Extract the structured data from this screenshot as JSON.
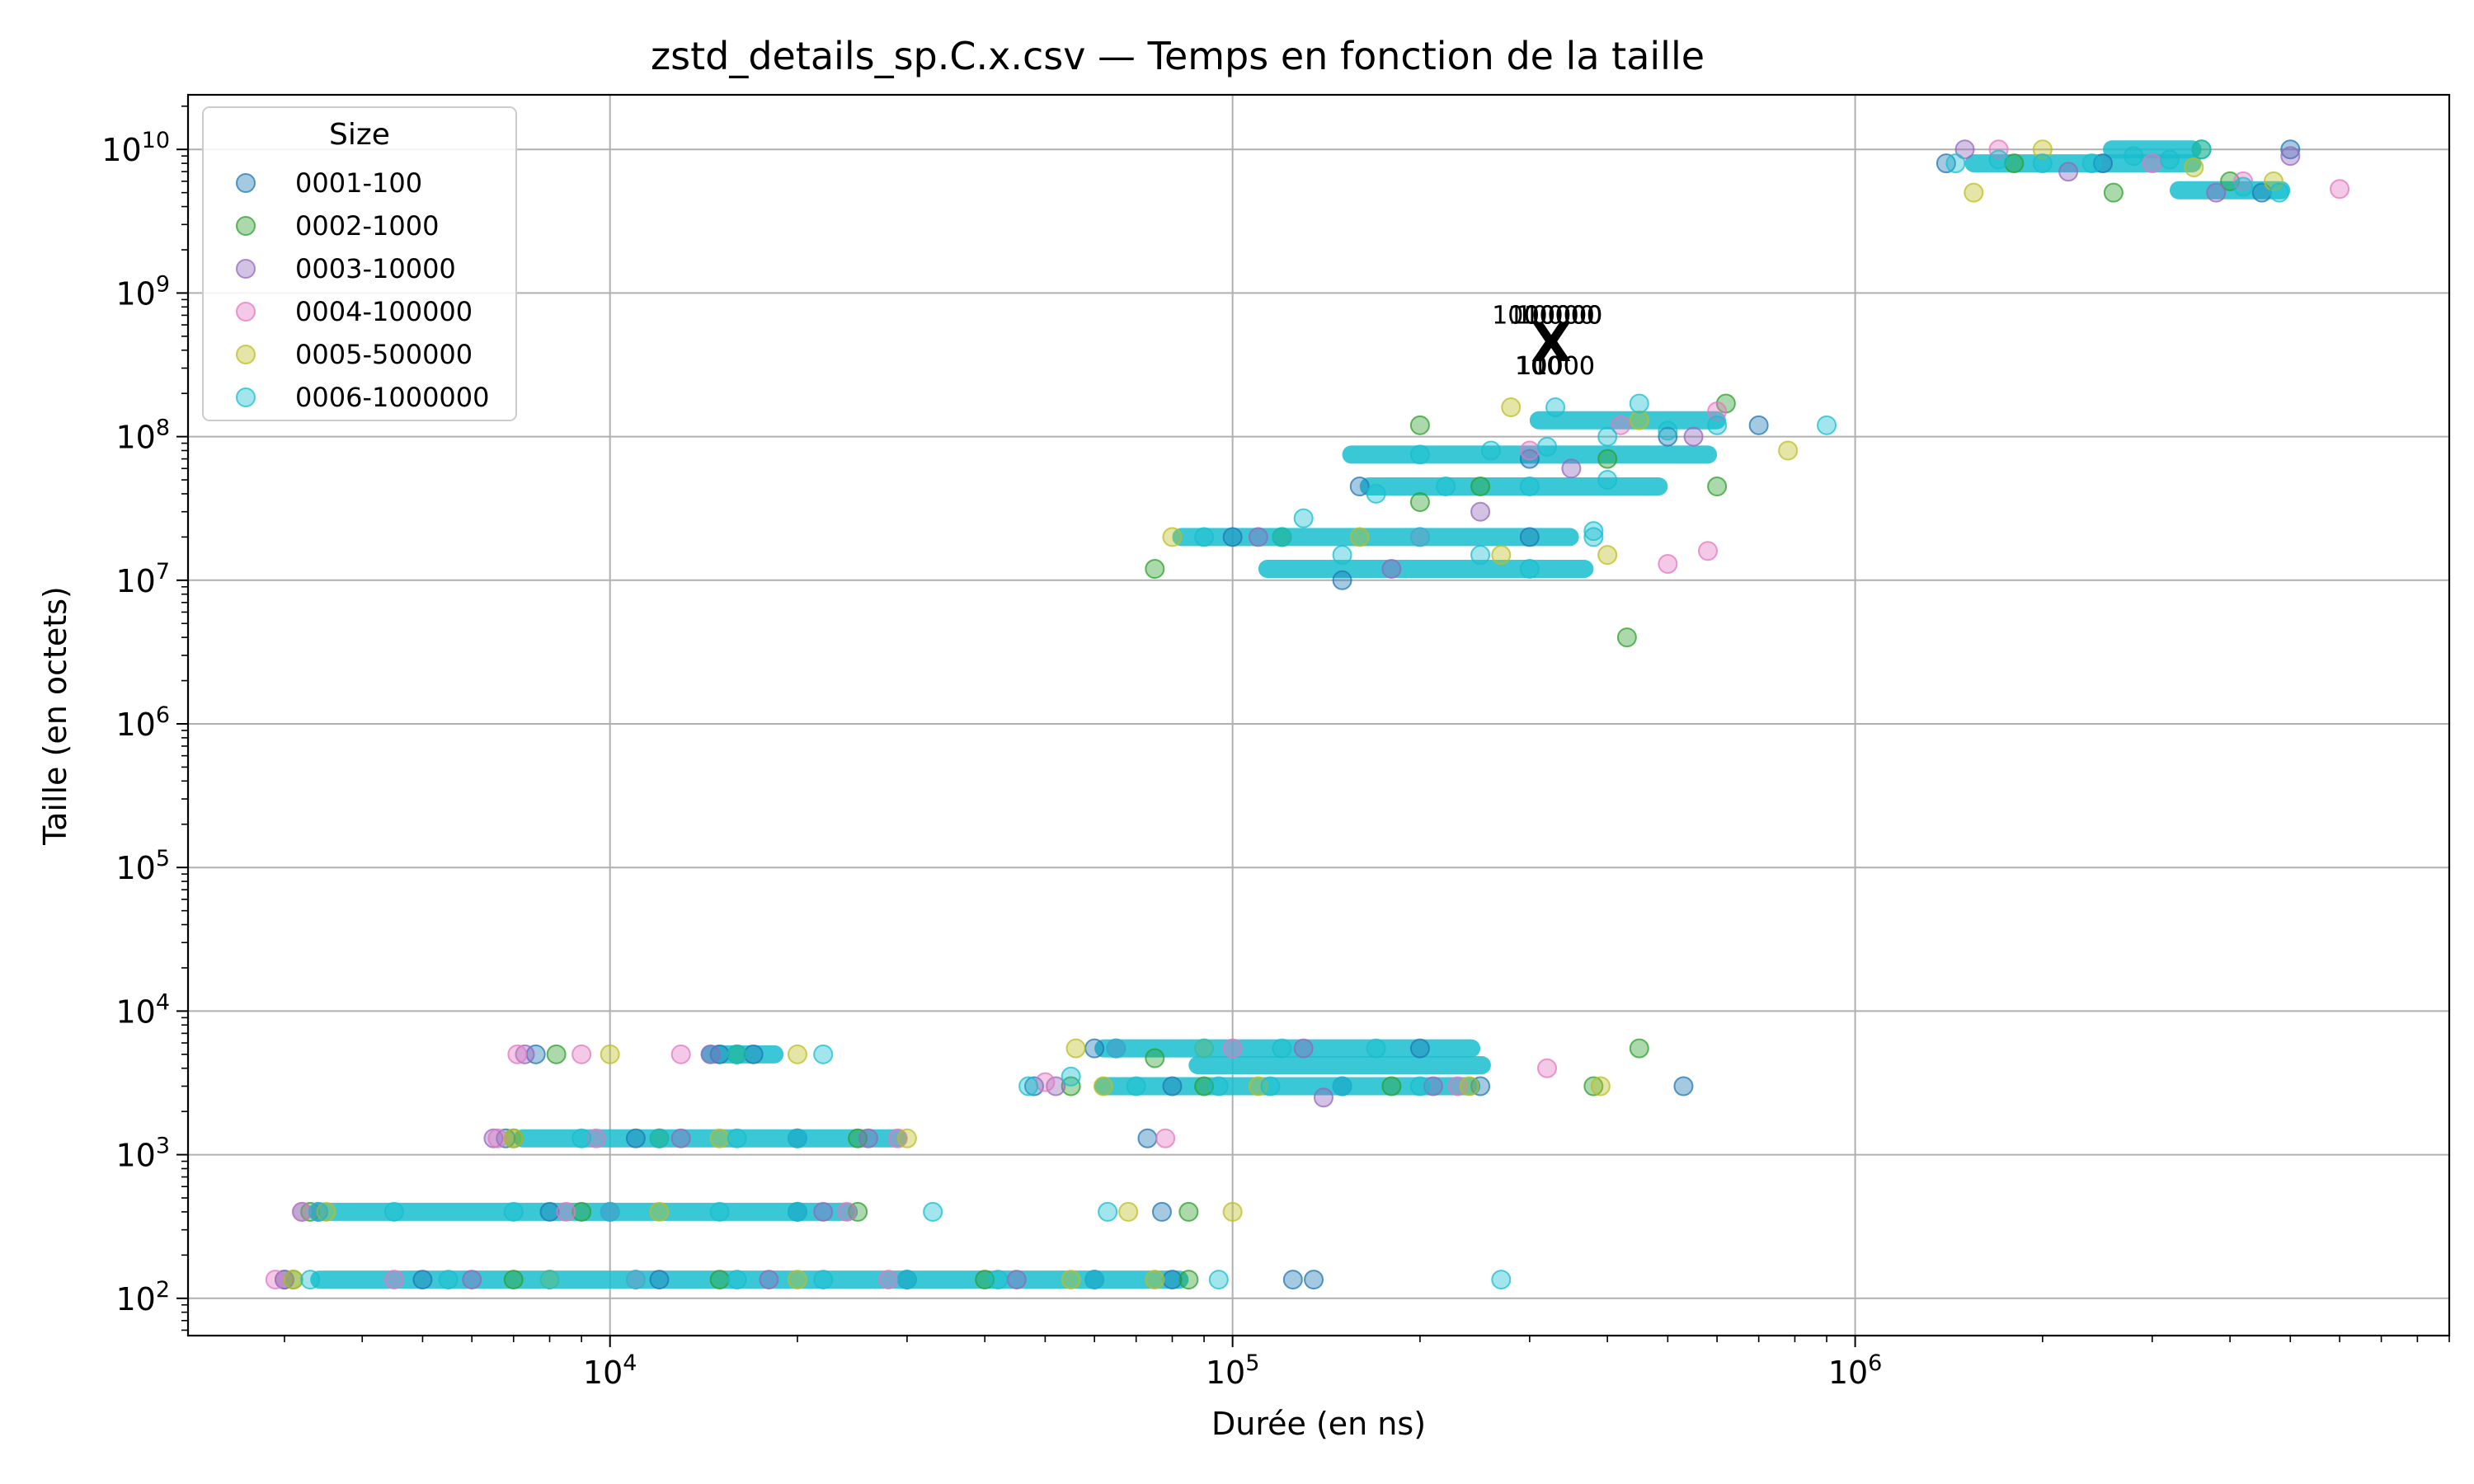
{
  "chart_data": {
    "type": "scatter",
    "title": "zstd_details_sp.C.x.csv — Temps en fonction de la taille",
    "xlabel": "Durée (en ns)",
    "ylabel": "Taille (en octets)",
    "xscale": "log",
    "yscale": "log",
    "xlim": [
      2100,
      9000000
    ],
    "ylim": [
      55,
      24000000000
    ],
    "grid": true,
    "legend_placement": "top-left",
    "legend_title": "Size",
    "x_ticks": [
      {
        "value": 10000,
        "base": "10",
        "exp": "4"
      },
      {
        "value": 100000,
        "base": "10",
        "exp": "5"
      },
      {
        "value": 1000000,
        "base": "10",
        "exp": "6"
      }
    ],
    "y_ticks": [
      {
        "value": 100,
        "base": "10",
        "exp": "2"
      },
      {
        "value": 1000,
        "base": "10",
        "exp": "3"
      },
      {
        "value": 10000,
        "base": "10",
        "exp": "4"
      },
      {
        "value": 100000,
        "base": "10",
        "exp": "5"
      },
      {
        "value": 1000000,
        "base": "10",
        "exp": "6"
      },
      {
        "value": 10000000,
        "base": "10",
        "exp": "7"
      },
      {
        "value": 100000000,
        "base": "10",
        "exp": "8"
      },
      {
        "value": 1000000000,
        "base": "10",
        "exp": "9"
      },
      {
        "value": 10000000000,
        "base": "10",
        "exp": "10"
      }
    ],
    "series": [
      {
        "name": "0001-100",
        "color": "#1f77b4",
        "points": [
          [
            3000,
            135
          ],
          [
            5000,
            135
          ],
          [
            12000,
            135
          ],
          [
            30000,
            135
          ],
          [
            60000,
            135
          ],
          [
            80000,
            135
          ],
          [
            125000,
            135
          ],
          [
            135000,
            135
          ],
          [
            3200,
            400
          ],
          [
            8000,
            400
          ],
          [
            20000,
            400
          ],
          [
            77000,
            400
          ],
          [
            6800,
            1300
          ],
          [
            11000,
            1300
          ],
          [
            20000,
            1300
          ],
          [
            73000,
            1300
          ],
          [
            7600,
            5000
          ],
          [
            15000,
            5000
          ],
          [
            17000,
            5000
          ],
          [
            48000,
            3000
          ],
          [
            80000,
            3000
          ],
          [
            150000,
            3000
          ],
          [
            250000,
            3000
          ],
          [
            530000,
            3000
          ],
          [
            60000,
            5500
          ],
          [
            200000,
            5500
          ],
          [
            100000,
            20000000
          ],
          [
            150000,
            10000000
          ],
          [
            300000,
            20000000
          ],
          [
            160000,
            45000000
          ],
          [
            300000,
            70000000
          ],
          [
            500000,
            100000000
          ],
          [
            700000,
            120000000
          ],
          [
            1400000,
            8000000000
          ],
          [
            2500000,
            8000000000
          ],
          [
            4500000,
            5000000000
          ],
          [
            5000000,
            10000000000
          ]
        ]
      },
      {
        "name": "0002-1000",
        "color": "#2ca02c",
        "points": [
          [
            3100,
            135
          ],
          [
            7000,
            135
          ],
          [
            15000,
            135
          ],
          [
            40000,
            135
          ],
          [
            85000,
            135
          ],
          [
            3300,
            400
          ],
          [
            9000,
            400
          ],
          [
            25000,
            400
          ],
          [
            85000,
            400
          ],
          [
            7000,
            1300
          ],
          [
            12000,
            1300
          ],
          [
            25000,
            1300
          ],
          [
            8200,
            5000
          ],
          [
            16000,
            5000
          ],
          [
            75000,
            4700
          ],
          [
            55000,
            3000
          ],
          [
            90000,
            3000
          ],
          [
            180000,
            3000
          ],
          [
            380000,
            3000
          ],
          [
            450000,
            5500
          ],
          [
            75000,
            12000000
          ],
          [
            120000,
            20000000
          ],
          [
            200000,
            35000000
          ],
          [
            250000,
            45000000
          ],
          [
            400000,
            70000000
          ],
          [
            600000,
            45000000
          ],
          [
            620000,
            170000000
          ],
          [
            430000,
            4000000
          ],
          [
            200000,
            120000000
          ],
          [
            2600000,
            5000000000
          ],
          [
            1800000,
            8000000000
          ],
          [
            3600000,
            10000000000
          ],
          [
            4000000,
            6000000000
          ]
        ]
      },
      {
        "name": "0003-10000",
        "color": "#9467bd",
        "points": [
          [
            3000,
            135
          ],
          [
            6000,
            135
          ],
          [
            18000,
            135
          ],
          [
            45000,
            135
          ],
          [
            3400,
            400
          ],
          [
            10000,
            400
          ],
          [
            22000,
            400
          ],
          [
            6500,
            1300
          ],
          [
            13000,
            1300
          ],
          [
            26000,
            1300
          ],
          [
            7300,
            5000
          ],
          [
            14500,
            5000
          ],
          [
            52000,
            3000
          ],
          [
            140000,
            2500
          ],
          [
            210000,
            3000
          ],
          [
            65000,
            5500
          ],
          [
            130000,
            5500
          ],
          [
            110000,
            20000000
          ],
          [
            180000,
            12000000
          ],
          [
            250000,
            30000000
          ],
          [
            350000,
            60000000
          ],
          [
            550000,
            100000000
          ],
          [
            1500000,
            10000000000
          ],
          [
            2200000,
            7000000000
          ],
          [
            3800000,
            5000000000
          ],
          [
            5000000,
            9000000000
          ]
        ]
      },
      {
        "name": "0004-100000",
        "color": "#e377c2",
        "points": [
          [
            2900,
            135
          ],
          [
            4500,
            135
          ],
          [
            11000,
            135
          ],
          [
            28000,
            135
          ],
          [
            3200,
            400
          ],
          [
            8500,
            400
          ],
          [
            24000,
            400
          ],
          [
            6600,
            1300
          ],
          [
            9500,
            1300
          ],
          [
            29000,
            1300
          ],
          [
            78000,
            1300
          ],
          [
            7100,
            5000
          ],
          [
            9000,
            5000
          ],
          [
            13000,
            5000
          ],
          [
            50000,
            3200
          ],
          [
            320000,
            4000
          ],
          [
            230000,
            3000
          ],
          [
            100000,
            5500
          ],
          [
            200000,
            20000000
          ],
          [
            500000,
            13000000
          ],
          [
            580000,
            16000000
          ],
          [
            300000,
            80000000
          ],
          [
            420000,
            120000000
          ],
          [
            600000,
            150000000
          ],
          [
            1700000,
            10000000000
          ],
          [
            3000000,
            8000000000
          ],
          [
            6000000,
            5300000000
          ],
          [
            4200000,
            6000000000
          ]
        ]
      },
      {
        "name": "0005-500000",
        "color": "#bcbd22",
        "points": [
          [
            3100,
            135
          ],
          [
            8000,
            135
          ],
          [
            20000,
            135
          ],
          [
            55000,
            135
          ],
          [
            75000,
            135
          ],
          [
            3500,
            400
          ],
          [
            12000,
            400
          ],
          [
            68000,
            400
          ],
          [
            100000,
            400
          ],
          [
            7000,
            1300
          ],
          [
            15000,
            1300
          ],
          [
            30000,
            1300
          ],
          [
            20000,
            5000
          ],
          [
            10000,
            5000
          ],
          [
            62000,
            3000
          ],
          [
            110000,
            3000
          ],
          [
            240000,
            3000
          ],
          [
            390000,
            3000
          ],
          [
            56000,
            5500
          ],
          [
            90000,
            5500
          ],
          [
            80000,
            20000000
          ],
          [
            160000,
            20000000
          ],
          [
            270000,
            15000000
          ],
          [
            400000,
            15000000
          ],
          [
            280000,
            160000000
          ],
          [
            450000,
            130000000
          ],
          [
            780000,
            80000000
          ],
          [
            1550000,
            5000000000
          ],
          [
            2000000,
            10000000000
          ],
          [
            4700000,
            6000000000
          ],
          [
            3500000,
            7500000000
          ]
        ]
      },
      {
        "name": "0006-1000000",
        "color": "#17becf",
        "points": [
          [
            3300,
            135
          ],
          [
            5500,
            135
          ],
          [
            8000,
            135
          ],
          [
            11000,
            135
          ],
          [
            16000,
            135
          ],
          [
            22000,
            135
          ],
          [
            30000,
            135
          ],
          [
            42000,
            135
          ],
          [
            60000,
            135
          ],
          [
            95000,
            135
          ],
          [
            270000,
            135
          ],
          [
            3400,
            400
          ],
          [
            4500,
            400
          ],
          [
            7000,
            400
          ],
          [
            10000,
            400
          ],
          [
            15000,
            400
          ],
          [
            20000,
            400
          ],
          [
            33000,
            400
          ],
          [
            63000,
            400
          ],
          [
            9000,
            1300
          ],
          [
            12000,
            1300
          ],
          [
            16000,
            1300
          ],
          [
            20000,
            1300
          ],
          [
            16000,
            5000
          ],
          [
            22000,
            5000
          ],
          [
            47000,
            3000
          ],
          [
            70000,
            3000
          ],
          [
            95000,
            3000
          ],
          [
            115000,
            3000
          ],
          [
            150000,
            3000
          ],
          [
            200000,
            3000
          ],
          [
            55000,
            3500
          ],
          [
            65000,
            5500
          ],
          [
            90000,
            5500
          ],
          [
            120000,
            5500
          ],
          [
            170000,
            5500
          ],
          [
            90000,
            20000000
          ],
          [
            120000,
            20000000
          ],
          [
            150000,
            15000000
          ],
          [
            200000,
            20000000
          ],
          [
            250000,
            15000000
          ],
          [
            300000,
            12000000
          ],
          [
            380000,
            20000000
          ],
          [
            130000,
            27000000
          ],
          [
            170000,
            40000000
          ],
          [
            220000,
            45000000
          ],
          [
            300000,
            45000000
          ],
          [
            400000,
            50000000
          ],
          [
            200000,
            75000000
          ],
          [
            260000,
            80000000
          ],
          [
            320000,
            85000000
          ],
          [
            400000,
            100000000
          ],
          [
            500000,
            110000000
          ],
          [
            600000,
            120000000
          ],
          [
            330000,
            160000000
          ],
          [
            450000,
            170000000
          ],
          [
            380000,
            22000000
          ],
          [
            900000,
            120000000
          ],
          [
            1450000,
            8000000000
          ],
          [
            1700000,
            8500000000
          ],
          [
            2000000,
            8000000000
          ],
          [
            2400000,
            8000000000
          ],
          [
            2800000,
            9000000000
          ],
          [
            3200000,
            8500000000
          ],
          [
            3600000,
            10000000000
          ],
          [
            4200000,
            5500000000
          ],
          [
            4800000,
            5000000000
          ]
        ]
      }
    ],
    "bands": [
      {
        "series": 5,
        "x": [
          3300,
          85000
        ],
        "y": 135
      },
      {
        "series": 5,
        "x": [
          3300,
          25000
        ],
        "y": 400
      },
      {
        "series": 5,
        "x": [
          7000,
          30000
        ],
        "y": 1300
      },
      {
        "series": 5,
        "x": [
          14000,
          19000
        ],
        "y": 5000
      },
      {
        "series": 5,
        "x": [
          60000,
          250000
        ],
        "y": 5500
      },
      {
        "series": 5,
        "x": [
          60000,
          250000
        ],
        "y": 3000
      },
      {
        "series": 5,
        "x": [
          85000,
          260000
        ],
        "y": 4200
      },
      {
        "series": 5,
        "x": [
          80000,
          360000
        ],
        "y": 20000000
      },
      {
        "series": 5,
        "x": [
          110000,
          380000
        ],
        "y": 12000000
      },
      {
        "series": 5,
        "x": [
          160000,
          500000
        ],
        "y": 45000000
      },
      {
        "series": 5,
        "x": [
          150000,
          600000
        ],
        "y": 75000000
      },
      {
        "series": 5,
        "x": [
          300000,
          620000
        ],
        "y": 130000000
      },
      {
        "series": 5,
        "x": [
          1500000,
          3600000
        ],
        "y": 8000000000
      },
      {
        "series": 5,
        "x": [
          2500000,
          3600000
        ],
        "y": 10000000000
      },
      {
        "series": 5,
        "x": [
          3200000,
          5000000
        ],
        "y": 5200000000
      }
    ],
    "annotations": [
      {
        "text": "1000000",
        "x": 320000,
        "y": 700000000
      },
      {
        "text": "100000",
        "x": 330000,
        "y": 700000000
      },
      {
        "text": "10000",
        "x": 330000,
        "y": 700000000
      },
      {
        "text": "1000",
        "x": 330000,
        "y": 700000000
      },
      {
        "text": "100",
        "x": 310000,
        "y": 310000000
      },
      {
        "text": "10000",
        "x": 330000,
        "y": 310000000
      },
      {
        "text": "1000",
        "x": 340000,
        "y": 310000000
      }
    ],
    "centroid_marker": {
      "symbol": "X",
      "x": 325000,
      "y": 450000000
    }
  }
}
